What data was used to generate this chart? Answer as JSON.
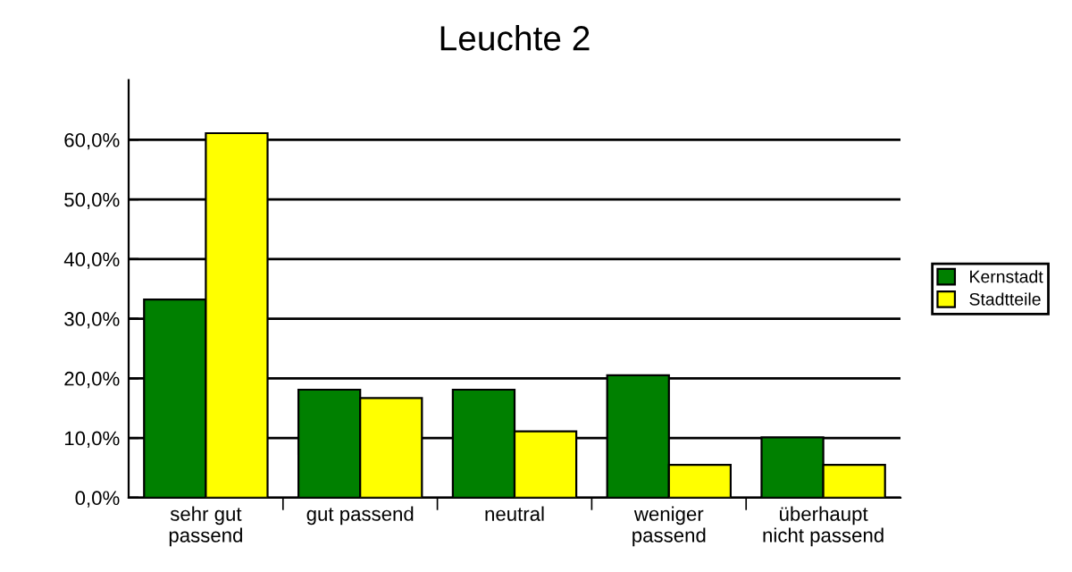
{
  "chart_data": {
    "type": "bar",
    "title": "Leuchte 2",
    "categories": [
      "sehr gut\npassend",
      "gut passend",
      "neutral",
      "weniger\npassend",
      "überhaupt\nnicht passend"
    ],
    "series": [
      {
        "name": "Kernstadt",
        "color": "#008000",
        "values": [
          33.2,
          18.1,
          18.1,
          20.5,
          10.1
        ]
      },
      {
        "name": "Stadtteile",
        "color": "#ffff00",
        "values": [
          61.1,
          16.7,
          11.1,
          5.5,
          5.5
        ]
      }
    ],
    "ylim": [
      0,
      70
    ],
    "yticks": [
      {
        "value": 0,
        "label": "0,0%"
      },
      {
        "value": 10,
        "label": "10,0%"
      },
      {
        "value": 20,
        "label": "20,0%"
      },
      {
        "value": 30,
        "label": "30,0%"
      },
      {
        "value": 40,
        "label": "40,0%"
      },
      {
        "value": 50,
        "label": "50,0%"
      },
      {
        "value": 60,
        "label": "60,0%"
      }
    ],
    "grid": "y",
    "legend": "right"
  }
}
